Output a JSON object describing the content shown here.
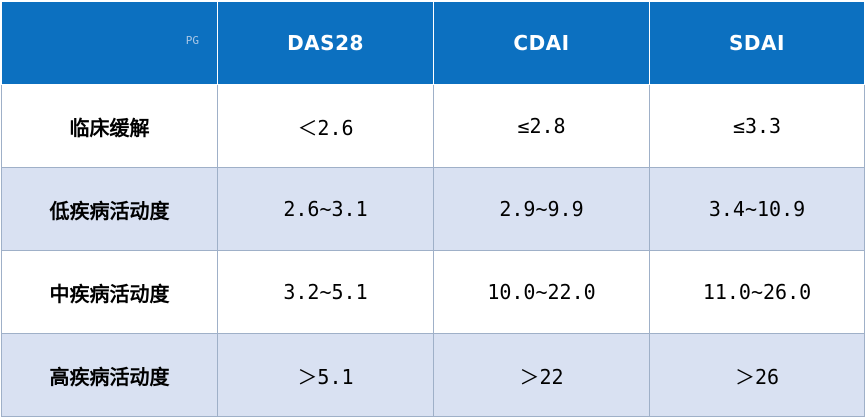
{
  "table": {
    "corner_mark": "PG",
    "headers": [
      "DAS28",
      "CDAI",
      "SDAI"
    ],
    "rows": [
      {
        "label": "临床缓解",
        "values": [
          "＜2.6",
          "≤2.8",
          "≤3.3"
        ]
      },
      {
        "label": "低疾病活动度",
        "values": [
          "2.6~3.1",
          "2.9~9.9",
          "3.4~10.9"
        ]
      },
      {
        "label": "中疾病活动度",
        "values": [
          "3.2~5.1",
          "10.0~22.0",
          "11.0~26.0"
        ]
      },
      {
        "label": "高疾病活动度",
        "values": [
          "＞5.1",
          "＞22",
          "＞26"
        ]
      }
    ]
  },
  "colors": {
    "header_bg": "#0c70c0",
    "alt_row_bg": "#d9e1f2",
    "border": "#9fb0c8"
  }
}
